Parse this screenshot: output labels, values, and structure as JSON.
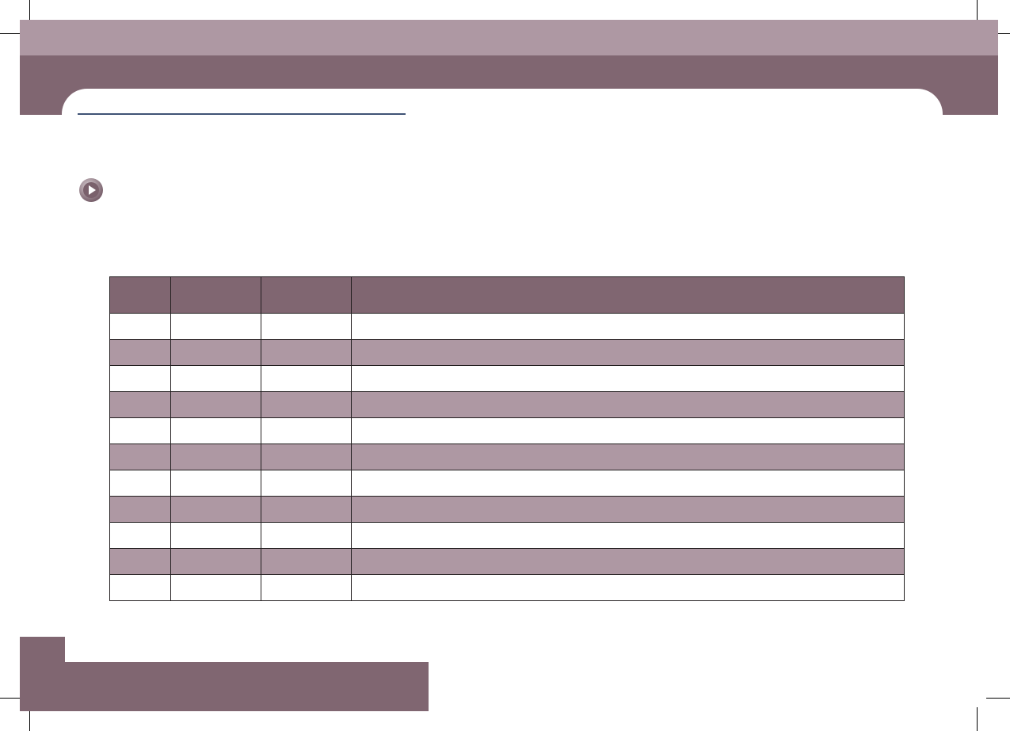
{
  "colors": {
    "band_light": "#ae98a3",
    "band_dark": "#806671",
    "rule": "#3f5275",
    "table_border": "#231f20"
  },
  "header": {
    "title": ""
  },
  "icons": {
    "bullet": "play-circle-icon"
  },
  "table": {
    "columns": [
      "",
      "",
      "",
      ""
    ],
    "rows": [
      [
        "",
        "",
        "",
        ""
      ],
      [
        "",
        "",
        "",
        ""
      ],
      [
        "",
        "",
        "",
        ""
      ],
      [
        "",
        "",
        "",
        ""
      ],
      [
        "",
        "",
        "",
        ""
      ],
      [
        "",
        "",
        "",
        ""
      ],
      [
        "",
        "",
        "",
        ""
      ],
      [
        "",
        "",
        "",
        ""
      ],
      [
        "",
        "",
        "",
        ""
      ],
      [
        "",
        "",
        "",
        ""
      ],
      [
        "",
        "",
        "",
        ""
      ]
    ]
  }
}
